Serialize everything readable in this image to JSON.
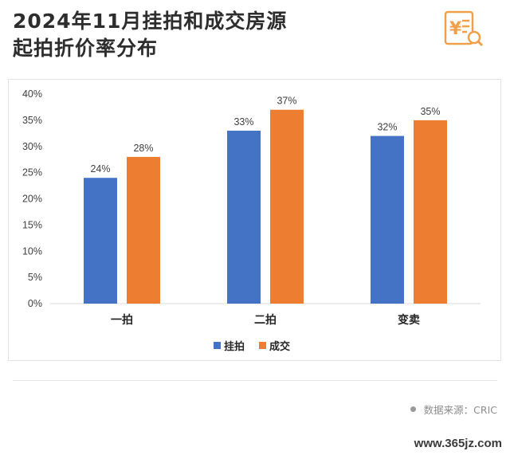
{
  "title": {
    "line1": "2024年11月挂拍和成交房源",
    "line2": "起拍折价率分布"
  },
  "icons": {
    "logo": "yuan-document-search-icon",
    "source_bullet": "dot-icon"
  },
  "chart_data": {
    "type": "bar",
    "categories": [
      "一拍",
      "二拍",
      "变卖"
    ],
    "series": [
      {
        "name": "挂拍",
        "values": [
          24,
          33,
          32
        ],
        "labels": [
          "24%",
          "33%",
          "32%"
        ],
        "color": "#4472c4"
      },
      {
        "name": "成交",
        "values": [
          28,
          37,
          35
        ],
        "labels": [
          "28%",
          "37%",
          "35%"
        ],
        "color": "#ed7d31"
      }
    ],
    "yticks": [
      "0%",
      "5%",
      "10%",
      "15%",
      "20%",
      "25%",
      "30%",
      "35%",
      "40%"
    ],
    "ylim": [
      0,
      40
    ],
    "grid": false,
    "legend_position": "bottom"
  },
  "footer": {
    "source": "数据来源：CRIC"
  },
  "watermark": {
    "url": "www.365jz.com"
  },
  "colors": {
    "accent": "#ed7d31",
    "primary": "#4472c4",
    "logo": "#f0a04b"
  }
}
